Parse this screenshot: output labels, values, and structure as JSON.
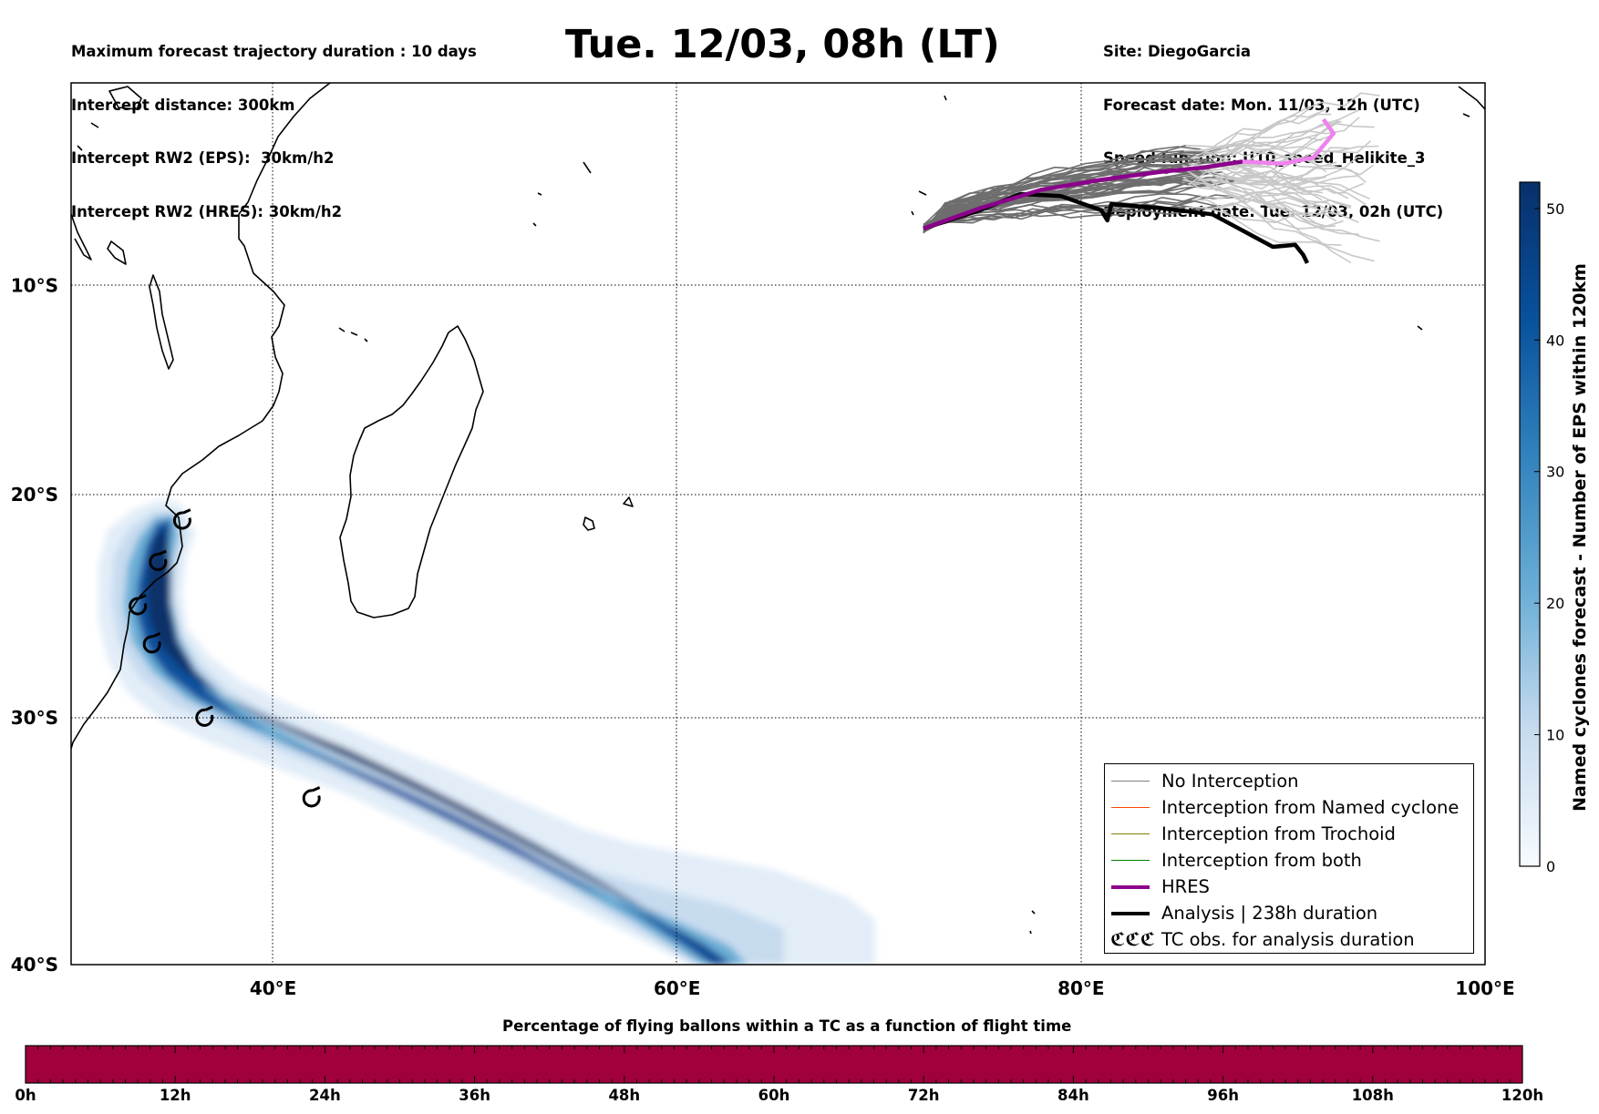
{
  "header_left": [
    "Maximum forecast trajectory duration : 10 days",
    "Intercept distance: 300km",
    "Intercept RW2 (EPS):  30km/h2",
    "Intercept RW2 (HRES): 30km/h2"
  ],
  "header_right": [
    "Site: DiegoGarcia",
    "Forecast date: Mon. 11/03, 12h (UTC)",
    "Speed function: U10_speed_Helikite_3",
    "Deployment date: Tue. 12/03, 02h (UTC)"
  ],
  "title": "Tue. 12/03, 08h (LT)",
  "map": {
    "lon_range": [
      30,
      100
    ],
    "lat_range": [
      -40,
      0
    ],
    "lon_ticks": [
      {
        "value": 40,
        "label": "40°E"
      },
      {
        "value": 60,
        "label": "60°E"
      },
      {
        "value": 80,
        "label": "80°E"
      },
      {
        "value": 100,
        "label": "100°E"
      }
    ],
    "lat_ticks": [
      {
        "value": -10,
        "label": "10°S"
      },
      {
        "value": -20,
        "label": "20°S"
      },
      {
        "value": -30,
        "label": "30°S"
      },
      {
        "value": -40,
        "label": "40°S"
      }
    ],
    "grid": "dotted"
  },
  "legend": {
    "placement": "lower-right",
    "items": [
      {
        "label": "No Interception",
        "color": "#808080",
        "style": "thin"
      },
      {
        "label": "Interception from Named cyclone",
        "color": "#ff4500",
        "style": "thin"
      },
      {
        "label": "Interception from Trochoid",
        "color": "#808000",
        "style": "thin"
      },
      {
        "label": "Interception from both",
        "color": "#008000",
        "style": "thin"
      },
      {
        "label": "HRES",
        "color": "#8b008b",
        "style": "thick"
      },
      {
        "label": "Analysis | 238h duration",
        "color": "#000000",
        "style": "thick"
      },
      {
        "label": "TC obs. for analysis duration",
        "color": "#000000",
        "style": "symbol",
        "symbol": "ℭℭℭ"
      }
    ]
  },
  "colorbar": {
    "label": "Named cyclones forecast - Number of EPS within 120km",
    "min": 0,
    "max": 52,
    "ticks": [
      "0",
      "10",
      "20",
      "30",
      "40",
      "50"
    ],
    "colormap": "Blues"
  },
  "bottom_bar": {
    "title": "Percentage of flying ballons within a TC as a function of flight time",
    "color": "#a0003c",
    "ticks": [
      "0h",
      "12h",
      "24h",
      "36h",
      "48h",
      "60h",
      "72h",
      "84h",
      "96h",
      "108h",
      "120h"
    ]
  },
  "chart_data": {
    "type": "map",
    "tc_track_observed": [
      {
        "lon": 35.5,
        "lat": -21.2
      },
      {
        "lon": 34.3,
        "lat": -23.1
      },
      {
        "lon": 33.3,
        "lat": -25.1
      },
      {
        "lon": 34.0,
        "lat": -26.8
      },
      {
        "lon": 36.6,
        "lat": -30.0
      },
      {
        "lon": 41.9,
        "lat": -33.4
      }
    ],
    "ensemble_density_core": [
      {
        "lon": 35.0,
        "lat": -20.9,
        "value": 45
      },
      {
        "lon": 34.3,
        "lat": -23.0,
        "value": 50
      },
      {
        "lon": 33.8,
        "lat": -25.5,
        "value": 50
      },
      {
        "lon": 35.2,
        "lat": -28.5,
        "value": 45
      },
      {
        "lon": 39.0,
        "lat": -31.5,
        "value": 45
      },
      {
        "lon": 44.0,
        "lat": -34.5,
        "value": 42
      },
      {
        "lon": 50.0,
        "lat": -37.0,
        "value": 38
      },
      {
        "lon": 56.0,
        "lat": -39.0,
        "value": 30
      },
      {
        "lon": 61.0,
        "lat": -40.0,
        "value": 20
      }
    ],
    "hres_trajectory": [
      {
        "lon": 72.2,
        "lat": -7.2
      },
      {
        "lon": 75.0,
        "lat": -6.2
      },
      {
        "lon": 78.0,
        "lat": -5.3
      },
      {
        "lon": 81.0,
        "lat": -4.8
      },
      {
        "lon": 84.0,
        "lat": -4.4
      },
      {
        "lon": 86.0,
        "lat": -4.2
      },
      {
        "lon": 88.0,
        "lat": -3.9
      },
      {
        "lon": 90.0,
        "lat": -4.0
      },
      {
        "lon": 91.5,
        "lat": -3.7
      },
      {
        "lon": 92.5,
        "lat": -2.5
      },
      {
        "lon": 92.0,
        "lat": -1.8
      }
    ],
    "analysis_trajectory": [
      {
        "lon": 72.2,
        "lat": -7.2
      },
      {
        "lon": 75.0,
        "lat": -6.3
      },
      {
        "lon": 77.0,
        "lat": -5.5
      },
      {
        "lon": 79.0,
        "lat": -5.6
      },
      {
        "lon": 81.0,
        "lat": -6.3
      },
      {
        "lon": 81.3,
        "lat": -6.8
      },
      {
        "lon": 81.5,
        "lat": -6.0
      },
      {
        "lon": 84.0,
        "lat": -6.2
      },
      {
        "lon": 86.5,
        "lat": -6.5
      },
      {
        "lon": 88.0,
        "lat": -7.3
      },
      {
        "lon": 89.5,
        "lat": -8.1
      },
      {
        "lon": 90.6,
        "lat": -8.0
      },
      {
        "lon": 91.0,
        "lat": -8.5
      },
      {
        "lon": 91.2,
        "lat": -8.9
      }
    ],
    "time_bar_percentage": 0
  }
}
